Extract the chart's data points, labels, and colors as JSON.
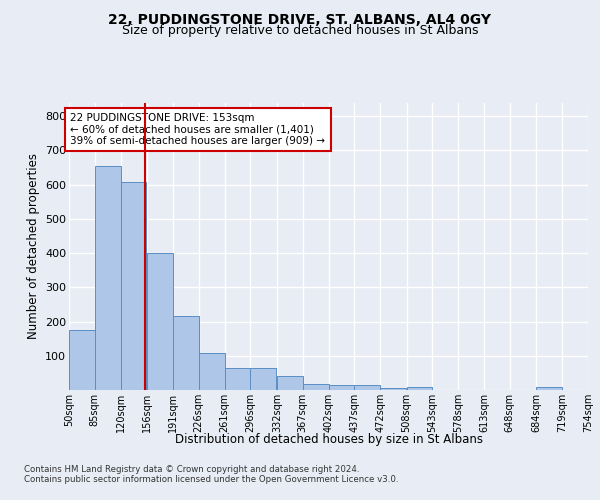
{
  "title": "22, PUDDINGSTONE DRIVE, ST. ALBANS, AL4 0GY",
  "subtitle": "Size of property relative to detached houses in St Albans",
  "xlabel": "Distribution of detached houses by size in St Albans",
  "ylabel": "Number of detached properties",
  "bar_values": [
    175,
    655,
    608,
    400,
    215,
    107,
    63,
    63,
    42,
    17,
    16,
    14,
    6,
    8,
    0,
    0,
    0,
    0,
    8,
    0
  ],
  "bin_edges": [
    50,
    85,
    120,
    156,
    191,
    226,
    261,
    296,
    332,
    367,
    402,
    437,
    472,
    508,
    543,
    578,
    613,
    648,
    684,
    719,
    754
  ],
  "tick_labels": [
    "50sqm",
    "85sqm",
    "120sqm",
    "156sqm",
    "191sqm",
    "226sqm",
    "261sqm",
    "296sqm",
    "332sqm",
    "367sqm",
    "402sqm",
    "437sqm",
    "472sqm",
    "508sqm",
    "543sqm",
    "578sqm",
    "613sqm",
    "648sqm",
    "684sqm",
    "719sqm",
    "754sqm"
  ],
  "bar_color": "#aec6e8",
  "bar_edge_color": "#5a8fc4",
  "vline_x": 153,
  "vline_color": "#cc0000",
  "annotation_text": "22 PUDDINGSTONE DRIVE: 153sqm\n← 60% of detached houses are smaller (1,401)\n39% of semi-detached houses are larger (909) →",
  "annotation_box_color": "#ffffff",
  "annotation_box_edge": "#cc0000",
  "ylim": [
    0,
    840
  ],
  "yticks": [
    0,
    100,
    200,
    300,
    400,
    500,
    600,
    700,
    800
  ],
  "footer_text": "Contains HM Land Registry data © Crown copyright and database right 2024.\nContains public sector information licensed under the Open Government Licence v3.0.",
  "bg_color": "#e8edf5",
  "plot_bg_color": "#e8edf5",
  "grid_color": "#ffffff",
  "title_fontsize": 10,
  "subtitle_fontsize": 9
}
